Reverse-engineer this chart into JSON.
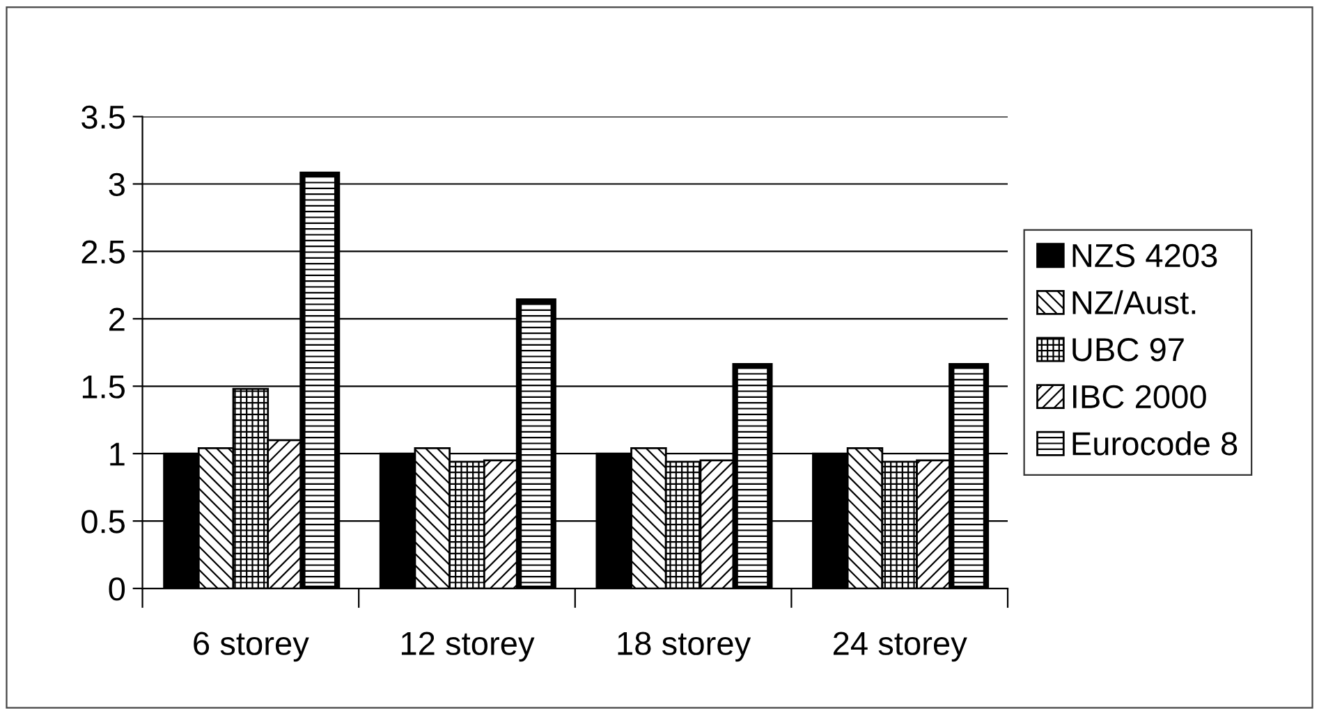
{
  "chart_data": {
    "type": "bar",
    "categories": [
      "6 storey",
      "12 storey",
      "18 storey",
      "24 storey"
    ],
    "series": [
      {
        "name": "NZS 4203",
        "color": "#000000",
        "values": [
          1.0,
          1.0,
          1.0,
          1.0
        ]
      },
      {
        "name": "NZ/Aust.",
        "color": "#000000",
        "values": [
          1.04,
          1.04,
          1.04,
          1.04
        ]
      },
      {
        "name": "UBC 97",
        "color": "#000000",
        "values": [
          1.48,
          0.94,
          0.94,
          0.94
        ]
      },
      {
        "name": "IBC 2000",
        "color": "#000000",
        "values": [
          1.1,
          0.95,
          0.95,
          0.95
        ]
      },
      {
        "name": "Eurocode 8",
        "color": "#000000",
        "values": [
          3.07,
          2.13,
          1.65,
          1.65
        ]
      }
    ],
    "ylim": [
      0,
      3.5
    ],
    "yticks": [
      0,
      0.5,
      1,
      {
        "value": 1.5,
        "label": "1.5"
      },
      2,
      2.5,
      3,
      3.5
    ],
    "grid": "y",
    "legend": "right"
  }
}
